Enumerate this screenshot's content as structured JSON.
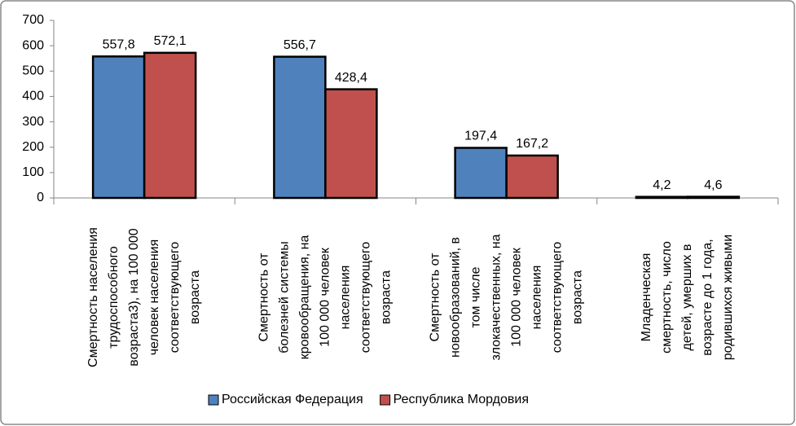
{
  "chart_data": {
    "type": "bar",
    "categories": [
      [
        "Смертность населения",
        "трудоспособного",
        "возраста3), на 100 000",
        "человек  населения",
        "соответствующего",
        "возраста"
      ],
      [
        "Смертность от",
        "болезней системы",
        "кровообращения, на",
        "100 000 человек",
        "населения",
        "соответствующего",
        "возраста"
      ],
      [
        "Смертность от",
        "новообразований, в",
        "том числе",
        "злокачественных, на",
        "100 000 человек",
        "населения",
        "соответствующего",
        "возраста"
      ],
      [
        "Младенческая",
        "смертность, число",
        "детей, умерших в",
        "возрасте до 1 года,",
        "родившихся живыми"
      ]
    ],
    "series": [
      {
        "name": "Российская Федерация",
        "color": "#4f81bd",
        "values": [
          557.8,
          556.7,
          197.4,
          4.2
        ],
        "value_labels": [
          "557,8",
          "556,7",
          "197,4",
          "4,2"
        ]
      },
      {
        "name": "Республика Мордовия",
        "color": "#c0504d",
        "values": [
          572.1,
          428.4,
          167.2,
          4.6
        ],
        "value_labels": [
          "572,1",
          "428,4",
          "167,2",
          "4,6"
        ]
      }
    ],
    "ylim": [
      0,
      700
    ],
    "yticks": [
      0,
      100,
      200,
      300,
      400,
      500,
      600,
      700
    ],
    "legend": "bottom"
  }
}
